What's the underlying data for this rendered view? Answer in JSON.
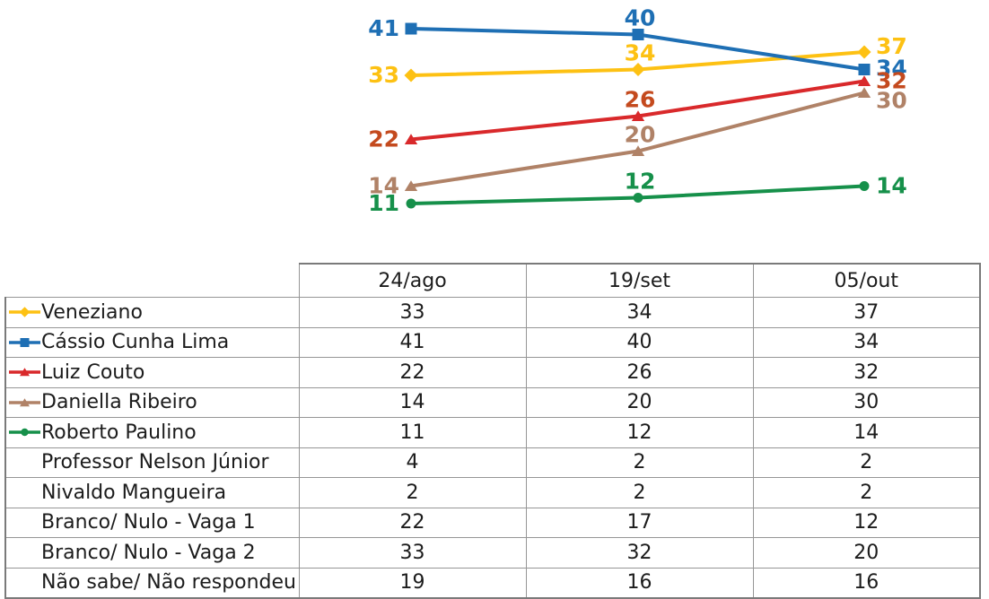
{
  "chart_data": {
    "type": "line",
    "title": "",
    "xlabel": "",
    "ylabel": "",
    "categories": [
      "24/ago",
      "19/set",
      "05/out"
    ],
    "axes_visible": false,
    "grid": false,
    "data_labels": true,
    "legend_position": "table-first-column",
    "ylim": [
      0,
      45
    ],
    "series": [
      {
        "name": "Veneziano",
        "values": [
          33,
          34,
          37
        ],
        "color": "#FDC113",
        "label_color": "#FDC113",
        "marker": "diamond"
      },
      {
        "name": "Cássio Cunha Lima",
        "values": [
          41,
          40,
          34
        ],
        "color": "#1E6FB4",
        "label_color": "#1E6FB4",
        "marker": "square"
      },
      {
        "name": "Luiz Couto",
        "values": [
          22,
          26,
          32
        ],
        "color": "#D9292B",
        "label_color": "#C44A1E",
        "marker": "triangle"
      },
      {
        "name": "Daniella Ribeiro",
        "values": [
          14,
          20,
          30
        ],
        "color": "#B08267",
        "label_color": "#B08267",
        "marker": "triangle"
      },
      {
        "name": "Roberto Paulino",
        "values": [
          11,
          12,
          14
        ],
        "color": "#16904A",
        "label_color": "#16904A",
        "marker": "circle"
      }
    ]
  },
  "table": {
    "column_headers": [
      "24/ago",
      "19/set",
      "05/out"
    ],
    "rows": [
      {
        "label": "Veneziano",
        "series_index": 0,
        "values": [
          "33",
          "34",
          "37"
        ]
      },
      {
        "label": "Cássio Cunha Lima",
        "series_index": 1,
        "values": [
          "41",
          "40",
          "34"
        ]
      },
      {
        "label": "Luiz Couto",
        "series_index": 2,
        "values": [
          "22",
          "26",
          "32"
        ]
      },
      {
        "label": "Daniella Ribeiro",
        "series_index": 3,
        "values": [
          "14",
          "20",
          "30"
        ]
      },
      {
        "label": "Roberto Paulino",
        "series_index": 4,
        "values": [
          "11",
          "12",
          "14"
        ]
      },
      {
        "label": "Professor Nelson Júnior",
        "series_index": null,
        "values": [
          "4",
          "2",
          "2"
        ]
      },
      {
        "label": "Nivaldo Mangueira",
        "series_index": null,
        "values": [
          "2",
          "2",
          "2"
        ]
      },
      {
        "label": "Branco/ Nulo - Vaga 1",
        "series_index": null,
        "values": [
          "22",
          "17",
          "12"
        ]
      },
      {
        "label": "Branco/ Nulo - Vaga 2",
        "series_index": null,
        "values": [
          "33",
          "32",
          "20"
        ]
      },
      {
        "label": "Não sabe/ Não respondeu",
        "series_index": null,
        "values": [
          "19",
          "16",
          "16"
        ]
      }
    ]
  }
}
